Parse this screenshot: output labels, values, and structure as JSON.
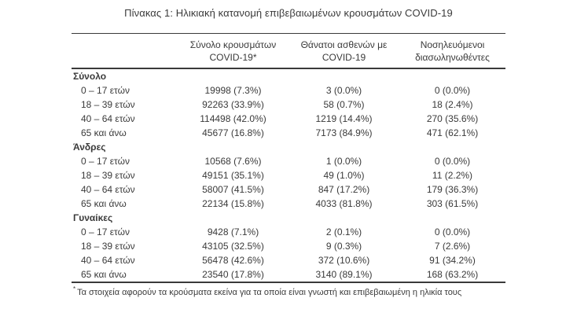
{
  "page": {
    "title": "Πίνακας 1: Ηλικιακή κατανομή επιβεβαιωμένων κρουσμάτων COVID-19"
  },
  "colors": {
    "text": "#3a3a3a",
    "rule": "#3a3a3a",
    "background": "#ffffff"
  },
  "table": {
    "headers": {
      "cases": "Σύνολο κρουσμάτων COVID-19*",
      "deaths": "Θάνατοι ασθενών με COVID-19",
      "intubated": "Νοσηλευόμενοι διασωληνωθέντες"
    },
    "sections": [
      {
        "label": "Σύνολο",
        "rows": [
          {
            "age": "0 – 17 ετών",
            "cases": "19998 (7.3%)",
            "deaths": "3 (0.0%)",
            "intubated": "0 (0.0%)"
          },
          {
            "age": "18 – 39 ετών",
            "cases": "92263 (33.9%)",
            "deaths": "58 (0.7%)",
            "intubated": "18 (2.4%)"
          },
          {
            "age": "40 – 64 ετών",
            "cases": "114498 (42.0%)",
            "deaths": "1219 (14.4%)",
            "intubated": "270 (35.6%)"
          },
          {
            "age": "65 και άνω",
            "cases": "45677 (16.8%)",
            "deaths": "7173 (84.9%)",
            "intubated": "471 (62.1%)"
          }
        ]
      },
      {
        "label": "Άνδρες",
        "rows": [
          {
            "age": "0 – 17 ετών",
            "cases": "10568 (7.6%)",
            "deaths": "1 (0.0%)",
            "intubated": "0 (0.0%)"
          },
          {
            "age": "18 – 39 ετών",
            "cases": "49151 (35.1%)",
            "deaths": "49 (1.0%)",
            "intubated": "11 (2.2%)"
          },
          {
            "age": "40 – 64 ετών",
            "cases": "58007 (41.5%)",
            "deaths": "847 (17.2%)",
            "intubated": "179 (36.3%)"
          },
          {
            "age": "65 και άνω",
            "cases": "22134 (15.8%)",
            "deaths": "4033 (81.8%)",
            "intubated": "303 (61.5%)"
          }
        ]
      },
      {
        "label": "Γυναίκες",
        "rows": [
          {
            "age": "0 – 17 ετών",
            "cases": "9428 (7.1%)",
            "deaths": "2 (0.1%)",
            "intubated": "0 (0.0%)"
          },
          {
            "age": "18 – 39 ετών",
            "cases": "43105 (32.5%)",
            "deaths": "9 (0.3%)",
            "intubated": "7 (2.6%)"
          },
          {
            "age": "40 – 64 ετών",
            "cases": "56478 (42.6%)",
            "deaths": "372 (10.6%)",
            "intubated": "91 (34.2%)"
          },
          {
            "age": "65 και άνω",
            "cases": "23540 (17.8%)",
            "deaths": "3140 (89.1%)",
            "intubated": "168 (63.2%)"
          }
        ]
      }
    ],
    "footnote": {
      "marker": "*",
      "text": "Τα στοιχεία αφορούν τα κρούσματα εκείνα για τα οποία είναι γνωστή και επιβεβαιωμένη η ηλικία τους"
    }
  }
}
